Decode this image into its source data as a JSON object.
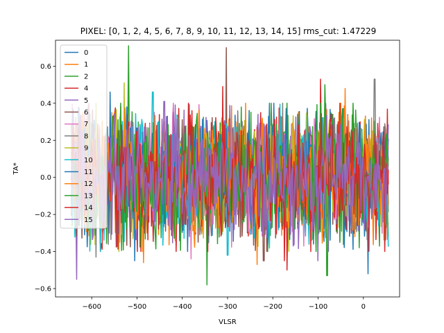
{
  "chart_data": {
    "type": "line",
    "title": "PIXEL: [0, 1, 2, 4, 5, 6, 7, 8, 9, 10, 11, 12, 13, 14, 15]   rms_cut: 1.47229",
    "xlabel": "VLSR",
    "ylabel": "TA*",
    "xlim": [
      -680,
      80
    ],
    "ylim": [
      -0.645,
      0.74
    ],
    "x_ticks": [
      -600,
      -500,
      -400,
      -300,
      -200,
      -100,
      0
    ],
    "x_tick_labels": [
      "−600",
      "−500",
      "−400",
      "−300",
      "−200",
      "−100",
      "0"
    ],
    "y_ticks": [
      -0.6,
      -0.4,
      -0.2,
      0.0,
      0.2,
      0.4,
      0.6
    ],
    "y_tick_labels": [
      "−0.6",
      "−0.4",
      "−0.2",
      "0.0",
      "0.2",
      "0.4",
      "0.6"
    ],
    "grid": false,
    "legend_position": "top-left",
    "x_range_data": [
      -645,
      55
    ],
    "series": [
      {
        "name": "0",
        "color": "#1f77b4",
        "amplitude": 0.16,
        "peak": [
          -45,
          0.37
        ],
        "trough": [
          10,
          -0.52
        ]
      },
      {
        "name": "1",
        "color": "#ff7f0e",
        "amplitude": 0.16,
        "peak": [
          -555,
          0.35
        ],
        "trough": [
          -485,
          -0.46
        ]
      },
      {
        "name": "2",
        "color": "#2ca02c",
        "amplitude": 0.17,
        "peak": [
          -518,
          0.71
        ],
        "trough": [
          -345,
          -0.58
        ]
      },
      {
        "name": "4",
        "color": "#d62728",
        "amplitude": 0.17,
        "peak": [
          -95,
          0.53
        ],
        "trough": [
          -168,
          -0.5
        ]
      },
      {
        "name": "5",
        "color": "#9467bd",
        "amplitude": 0.16,
        "peak": [
          -630,
          0.38
        ],
        "trough": [
          -633,
          -0.55
        ]
      },
      {
        "name": "6",
        "color": "#8c564b",
        "amplitude": 0.16,
        "peak": [
          -302,
          0.7
        ],
        "trough": [
          -220,
          -0.45
        ]
      },
      {
        "name": "7",
        "color": "#e377c2",
        "amplitude": 0.16,
        "peak": [
          -420,
          0.4
        ],
        "trough": [
          -380,
          -0.44
        ]
      },
      {
        "name": "8",
        "color": "#7f7f7f",
        "amplitude": 0.16,
        "peak": [
          25,
          0.53
        ],
        "trough": [
          -590,
          -0.43
        ]
      },
      {
        "name": "9",
        "color": "#bcbd22",
        "amplitude": 0.16,
        "peak": [
          -528,
          0.51
        ],
        "trough": [
          -540,
          -0.4
        ]
      },
      {
        "name": "10",
        "color": "#17becf",
        "amplitude": 0.16,
        "peak": [
          -465,
          0.46
        ],
        "trough": [
          -300,
          -0.42
        ]
      },
      {
        "name": "11",
        "color": "#1f77b4",
        "amplitude": 0.16,
        "peak": [
          -560,
          0.46
        ],
        "trough": [
          -505,
          -0.45
        ]
      },
      {
        "name": "12",
        "color": "#ff7f0e",
        "amplitude": 0.16,
        "peak": [
          -40,
          0.48
        ],
        "trough": [
          -235,
          -0.47
        ]
      },
      {
        "name": "13",
        "color": "#2ca02c",
        "amplitude": 0.17,
        "peak": [
          -85,
          0.5
        ],
        "trough": [
          -80,
          -0.53
        ]
      },
      {
        "name": "14",
        "color": "#d62728",
        "amplitude": 0.16,
        "peak": [
          -310,
          0.49
        ],
        "trough": [
          -175,
          -0.45
        ]
      },
      {
        "name": "15",
        "color": "#9467bd",
        "amplitude": 0.15,
        "peak": [
          -440,
          0.41
        ],
        "trough": [
          -100,
          -0.45
        ]
      }
    ]
  }
}
